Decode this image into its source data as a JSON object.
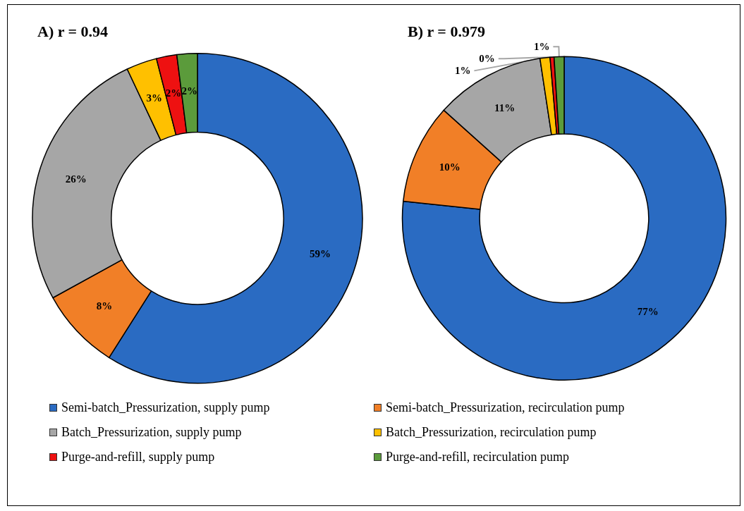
{
  "chart_data": [
    {
      "type": "donut",
      "title": "A) r = 0.94",
      "legend": "bottom",
      "categories": [
        "Semi-batch_Pressurization, supply pump",
        "Semi-batch_Pressurization, recirculation pump",
        "Batch_Pressurization, supply pump",
        "Batch_Pressurization, recirculation pump",
        "Purge-and-refill, supply pump",
        "Purge-and-refill, recirculation pump"
      ],
      "values": [
        59,
        8,
        26,
        3,
        2,
        2
      ],
      "value_labels": [
        "59%",
        "8%",
        "26%",
        "3%",
        "2%",
        "2%"
      ],
      "colors": [
        "#2a6bc2",
        "#f17f27",
        "#a6a6a6",
        "#ffc000",
        "#ee1111",
        "#5b9b3b"
      ]
    },
    {
      "type": "donut",
      "title": "B) r = 0.979",
      "categories": [
        null,
        null,
        null,
        null,
        null,
        null
      ],
      "values": [
        77,
        10,
        11,
        1,
        0.4,
        1
      ],
      "value_labels": [
        "77%",
        "10%",
        "11%",
        "1%",
        "0%",
        "1%"
      ],
      "colors": [
        "#2a6bc2",
        "#f17f27",
        "#a6a6a6",
        "#ffc000",
        "#ee1111",
        "#5b9b3b"
      ]
    }
  ]
}
